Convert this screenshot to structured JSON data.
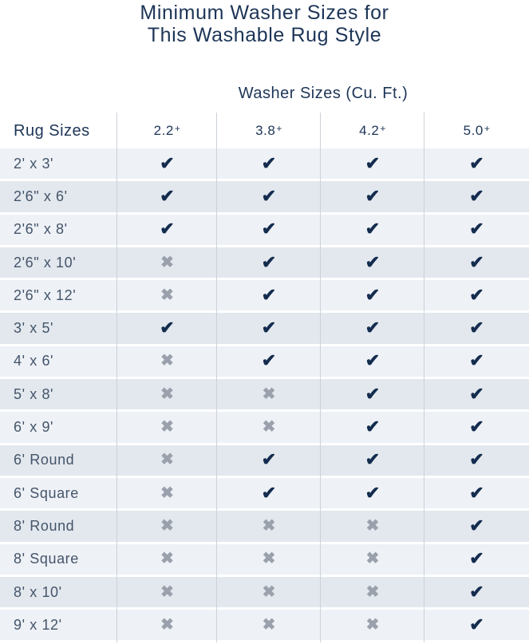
{
  "header": {
    "title_line1": "Minimum Washer Sizes for",
    "title_line2": "This Washable Rug Style"
  },
  "icons": {
    "check_glyph": "✔",
    "cross_glyph": "✖"
  },
  "colors": {
    "title_navy": "#1d3557",
    "check_navy": "#132c4e",
    "cross_gray": "#9aa1ac",
    "stripe_light": "#eef1f6",
    "stripe_dark": "#e3e8ee",
    "divider_gray": "#cdd2d9",
    "row_label_slate": "#44556a"
  },
  "chart_data": {
    "type": "table",
    "title": "Minimum Washer Sizes for This Washable Rug Style",
    "column_group_label": "Washer Sizes (Cu. Ft.)",
    "row_header": "Rug Sizes",
    "columns": [
      "2.2+",
      "3.8+",
      "4.2+",
      "5.0+"
    ],
    "legend": {
      "yes": "check",
      "no": "cross"
    },
    "rows": [
      {
        "label": "2' x 3'",
        "fits": [
          "yes",
          "yes",
          "yes",
          "yes"
        ]
      },
      {
        "label": "2'6\" x 6'",
        "fits": [
          "yes",
          "yes",
          "yes",
          "yes"
        ]
      },
      {
        "label": "2'6\" x 8'",
        "fits": [
          "yes",
          "yes",
          "yes",
          "yes"
        ]
      },
      {
        "label": "2'6\" x 10'",
        "fits": [
          "no",
          "yes",
          "yes",
          "yes"
        ]
      },
      {
        "label": "2'6\" x 12'",
        "fits": [
          "no",
          "yes",
          "yes",
          "yes"
        ]
      },
      {
        "label": "3' x 5'",
        "fits": [
          "yes",
          "yes",
          "yes",
          "yes"
        ]
      },
      {
        "label": "4' x 6'",
        "fits": [
          "no",
          "yes",
          "yes",
          "yes"
        ]
      },
      {
        "label": "5' x 8'",
        "fits": [
          "no",
          "no",
          "yes",
          "yes"
        ]
      },
      {
        "label": "6' x 9'",
        "fits": [
          "no",
          "no",
          "yes",
          "yes"
        ]
      },
      {
        "label": "6' Round",
        "fits": [
          "no",
          "yes",
          "yes",
          "yes"
        ]
      },
      {
        "label": "6' Square",
        "fits": [
          "no",
          "yes",
          "yes",
          "yes"
        ]
      },
      {
        "label": "8' Round",
        "fits": [
          "no",
          "no",
          "no",
          "yes"
        ]
      },
      {
        "label": "8' Square",
        "fits": [
          "no",
          "no",
          "no",
          "yes"
        ]
      },
      {
        "label": "8' x 10'",
        "fits": [
          "no",
          "no",
          "no",
          "yes"
        ]
      },
      {
        "label": "9' x 12'",
        "fits": [
          "no",
          "no",
          "no",
          "yes"
        ]
      }
    ]
  }
}
